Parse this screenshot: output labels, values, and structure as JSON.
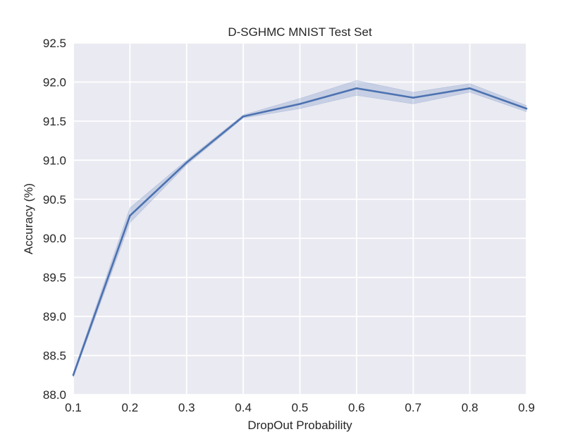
{
  "chart_data": {
    "type": "line",
    "title": "D-SGHMC MNIST Test Set",
    "xlabel": "DropOut Probability",
    "ylabel": "Accuracy (%)",
    "xlim": [
      0.1,
      0.9
    ],
    "ylim": [
      88.0,
      92.5
    ],
    "x_ticks": [
      "0.1",
      "0.2",
      "0.3",
      "0.4",
      "0.5",
      "0.6",
      "0.7",
      "0.8",
      "0.9"
    ],
    "y_ticks": [
      "88.0",
      "88.5",
      "89.0",
      "89.5",
      "90.0",
      "90.5",
      "91.0",
      "91.5",
      "92.0",
      "92.5"
    ],
    "grid": true,
    "background_color": "#EAEAF2",
    "grid_color": "#FFFFFF",
    "series": [
      {
        "x": [
          0.1,
          0.2,
          0.3,
          0.4,
          0.5,
          0.6,
          0.7,
          0.8,
          0.9
        ],
        "values": [
          88.25,
          90.29,
          90.97,
          91.56,
          91.72,
          91.92,
          91.8,
          91.92,
          91.66
        ],
        "band_lower": [
          88.22,
          90.2,
          90.94,
          91.54,
          91.66,
          91.83,
          91.72,
          91.87,
          91.62
        ],
        "band_upper": [
          88.28,
          90.39,
          91.0,
          91.58,
          91.79,
          92.02,
          91.87,
          91.98,
          91.7
        ],
        "color": "#4C72B0"
      }
    ]
  }
}
